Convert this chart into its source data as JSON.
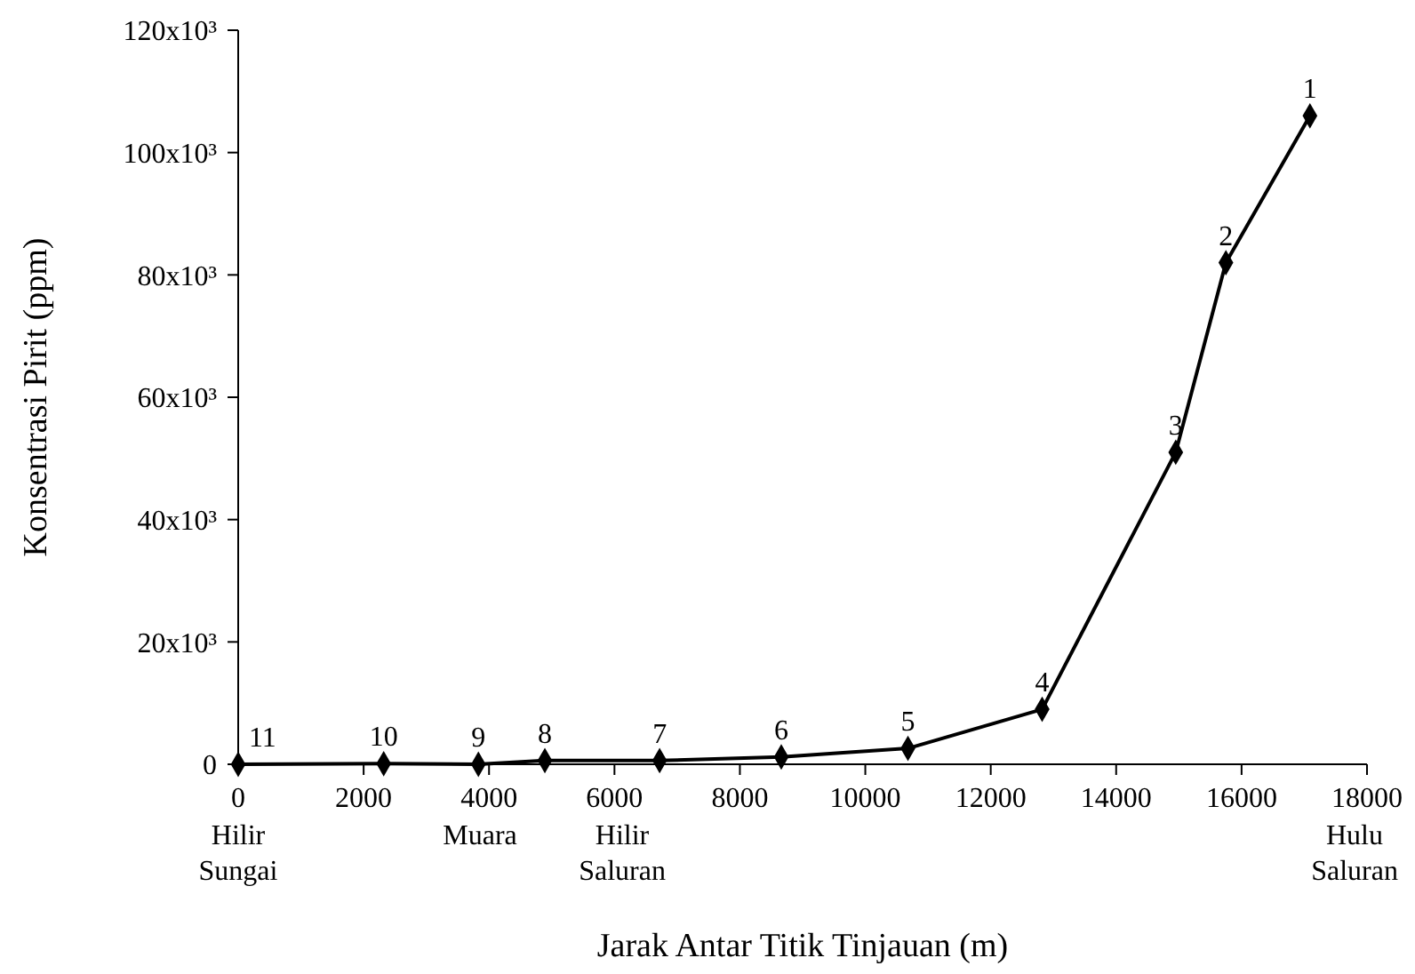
{
  "chart_data": {
    "type": "line",
    "xlabel": "Jarak Antar Titik Tinjauan (m)",
    "ylabel": "Konsentrasi Pirit (ppm)",
    "x": [
      0,
      2320,
      3830,
      4890,
      6720,
      8660,
      10680,
      12820,
      14950,
      15750,
      17090
    ],
    "series": [
      {
        "color": "#000000",
        "values": [
          0,
          100,
          0,
          600,
          600,
          1200,
          2600,
          9000,
          51000,
          82000,
          106000
        ]
      }
    ],
    "xlim": [
      0,
      18000
    ],
    "xticks": [
      0,
      2000,
      4000,
      6000,
      8000,
      10000,
      12000,
      14000,
      16000,
      18000
    ],
    "ylim": [
      0,
      120000
    ],
    "yticks": [
      0,
      {
        "value": 20000,
        "label": "20x10³"
      },
      {
        "value": 40000,
        "label": "40x10³"
      },
      {
        "value": 60000,
        "label": "60x10³"
      },
      {
        "value": 80000,
        "label": "80x10³"
      },
      {
        "value": 100000,
        "label": "100x10³"
      },
      {
        "value": 120000,
        "label": "120x10³"
      }
    ],
    "marker": "diamond",
    "line_style": "solid",
    "grid": false,
    "annotations": [
      {
        "text": "11",
        "x": 0,
        "y": 0
      },
      {
        "text": "10",
        "x": 2320,
        "y": 100
      },
      {
        "text": "9",
        "x": 3830,
        "y": 0
      },
      {
        "text": "8",
        "x": 4890,
        "y": 600
      },
      {
        "text": "7",
        "x": 6720,
        "y": 600
      },
      {
        "text": "6",
        "x": 8660,
        "y": 1200
      },
      {
        "text": "5",
        "x": 10680,
        "y": 2600
      },
      {
        "text": "4",
        "x": 12820,
        "y": 9000
      },
      {
        "text": "3",
        "x": 14950,
        "y": 51000
      },
      {
        "text": "2",
        "x": 15750,
        "y": 82000
      },
      {
        "text": "1",
        "x": 17090,
        "y": 106000
      },
      "Hilir Sungai",
      "Muara",
      "Hilir Saluran",
      "Hulu Saluran"
    ]
  }
}
